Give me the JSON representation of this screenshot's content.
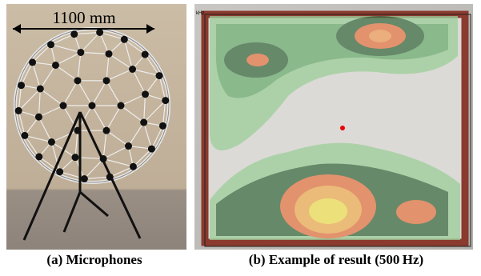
{
  "figure": {
    "panels": [
      {
        "annotation": "1100 mm",
        "caption": "(a) Microphones"
      },
      {
        "annotation": "kHz",
        "caption": "(b) Example of result (500 Hz)"
      }
    ]
  }
}
